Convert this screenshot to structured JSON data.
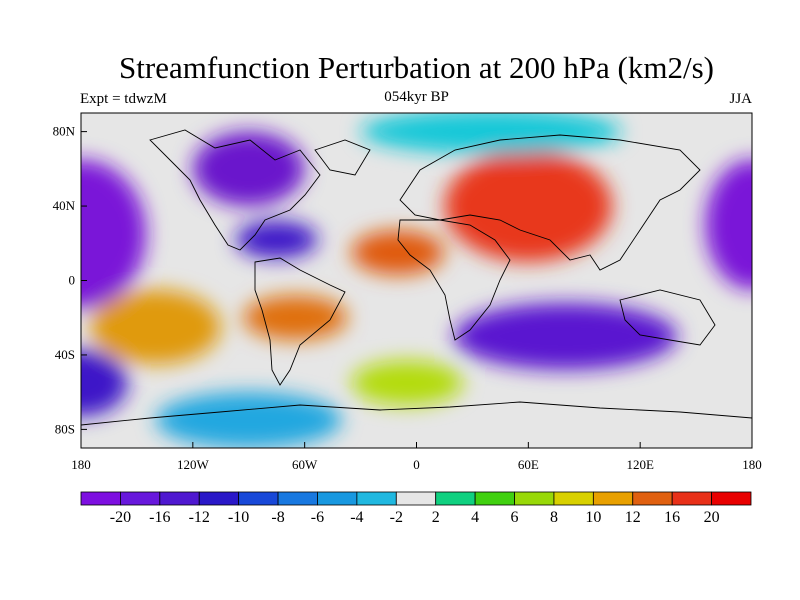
{
  "title": "Streamfunction Perturbation at 200 hPa (km2/s)",
  "left_subtitle": "Expt = tdwzM",
  "center_subtitle": "054kyr BP",
  "right_subtitle": "JJA",
  "map": {
    "lon_range": [
      -180,
      180
    ],
    "lat_range": [
      -90,
      90
    ],
    "lat_ticks": [
      {
        "value": 80,
        "label": "80N"
      },
      {
        "value": 40,
        "label": "40N"
      },
      {
        "value": 0,
        "label": "0"
      },
      {
        "value": -40,
        "label": "40S"
      },
      {
        "value": -80,
        "label": "80S"
      }
    ],
    "lon_ticks": [
      {
        "value": -180,
        "label": "180"
      },
      {
        "value": -120,
        "label": "120W"
      },
      {
        "value": -60,
        "label": "60W"
      },
      {
        "value": 0,
        "label": "0"
      },
      {
        "value": 60,
        "label": "60E"
      },
      {
        "value": 120,
        "label": "120E"
      },
      {
        "value": 180,
        "label": "180"
      }
    ],
    "background_color": "#e6e6e6",
    "features": [
      {
        "name": "north-pacific-low",
        "level": -16,
        "lon": -180,
        "lat": 25,
        "rx": 35,
        "ry": 40,
        "color": "#7a18d8"
      },
      {
        "name": "north-america-low",
        "level": -16,
        "lon": -90,
        "lat": 60,
        "rx": 30,
        "ry": 20,
        "color": "#6a18cc"
      },
      {
        "name": "gulf-low",
        "level": -12,
        "lon": -75,
        "lat": 22,
        "rx": 22,
        "ry": 10,
        "color": "#3c18c8"
      },
      {
        "name": "west-pacific-low",
        "level": -16,
        "lon": 180,
        "lat": 30,
        "rx": 25,
        "ry": 35,
        "color": "#7a18d8"
      },
      {
        "name": "south-indian-low",
        "level": -16,
        "lon": 80,
        "lat": -30,
        "rx": 60,
        "ry": 18,
        "color": "#5a18d0"
      },
      {
        "name": "south-pacific-low",
        "level": -12,
        "lon": -180,
        "lat": -55,
        "rx": 25,
        "ry": 18,
        "color": "#3c18c8"
      },
      {
        "name": "southern-ocean-low",
        "level": -6,
        "lon": -90,
        "lat": -75,
        "rx": 50,
        "ry": 15,
        "color": "#22a7e0"
      },
      {
        "name": "eurasian-high",
        "level": 20,
        "lon": 60,
        "lat": 40,
        "rx": 45,
        "ry": 30,
        "color": "#e8381a"
      },
      {
        "name": "north-africa-high",
        "level": 16,
        "lon": -10,
        "lat": 15,
        "rx": 25,
        "ry": 12,
        "color": "#e05a10"
      },
      {
        "name": "south-pacific-high",
        "level": 12,
        "lon": -140,
        "lat": -25,
        "rx": 35,
        "ry": 20,
        "color": "#e09a10"
      },
      {
        "name": "south-america-high",
        "level": 16,
        "lon": -65,
        "lat": -20,
        "rx": 28,
        "ry": 12,
        "color": "#e07010"
      },
      {
        "name": "south-atlantic-high",
        "level": 8,
        "lon": -5,
        "lat": -55,
        "rx": 30,
        "ry": 12,
        "color": "#b4dc08"
      },
      {
        "name": "arctic-ring",
        "level": -2,
        "lon": 40,
        "lat": 80,
        "rx": 70,
        "ry": 12,
        "color": "#18c8d8"
      }
    ]
  },
  "colorbar": {
    "labels": [
      "-20",
      "-16",
      "-12",
      "-10",
      "-8",
      "-6",
      "-4",
      "-2",
      "2",
      "4",
      "6",
      "8",
      "10",
      "12",
      "16",
      "20"
    ],
    "colors": [
      "#7d0fe0",
      "#6818dc",
      "#4f18d0",
      "#2a18c8",
      "#1848d8",
      "#1878e0",
      "#1898e0",
      "#20b8e0",
      "#e6e6e6",
      "#10d080",
      "#40d010",
      "#98d808",
      "#d8d000",
      "#e8a000",
      "#e06010",
      "#e83018",
      "#e80000"
    ]
  }
}
